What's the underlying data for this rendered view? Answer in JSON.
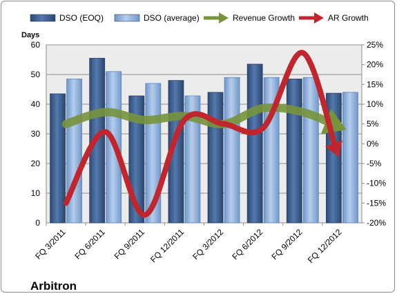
{
  "chart_data": {
    "type": "bar",
    "title": "",
    "company": "Arbitron",
    "categories": [
      "FQ 3/2011",
      "FQ 6/2011",
      "FQ 9/2011",
      "FQ 12/2011",
      "FQ 3/2012",
      "FQ 6/2012",
      "FQ 9/2012",
      "FQ 12/2012"
    ],
    "y_left": {
      "label": "Days",
      "lim": [
        0,
        60
      ],
      "ticks": [
        0,
        10,
        20,
        30,
        40,
        50,
        60
      ]
    },
    "y_right": {
      "label": "",
      "lim": [
        -20,
        25
      ],
      "ticks": [
        "-20%",
        "-15%",
        "-10%",
        "-5%",
        "0%",
        "5%",
        "10%",
        "15%",
        "20%",
        "25%"
      ]
    },
    "grid": true,
    "legend_position": "top",
    "series": [
      {
        "name": "DSO (EOQ)",
        "kind": "bar",
        "axis": "left",
        "color": "#3f5f8f",
        "values": [
          43.5,
          55.5,
          42.8,
          48,
          44,
          53.5,
          48.5,
          43.7
        ]
      },
      {
        "name": "DSO (average)",
        "kind": "bar",
        "axis": "left",
        "color": "#8fb3de",
        "values": [
          48.5,
          51,
          47,
          42.8,
          49,
          49,
          49,
          44
        ]
      },
      {
        "name": "Revenue Growth",
        "kind": "line",
        "axis": "right",
        "unit": "%",
        "color": "#77933c",
        "values": [
          5,
          8,
          6,
          7,
          5,
          9,
          8,
          4
        ]
      },
      {
        "name": "AR Growth",
        "kind": "line",
        "axis": "right",
        "unit": "%",
        "color": "#c0262d",
        "values": [
          -15,
          3,
          -18,
          6,
          5,
          4,
          23,
          -6
        ]
      }
    ]
  }
}
